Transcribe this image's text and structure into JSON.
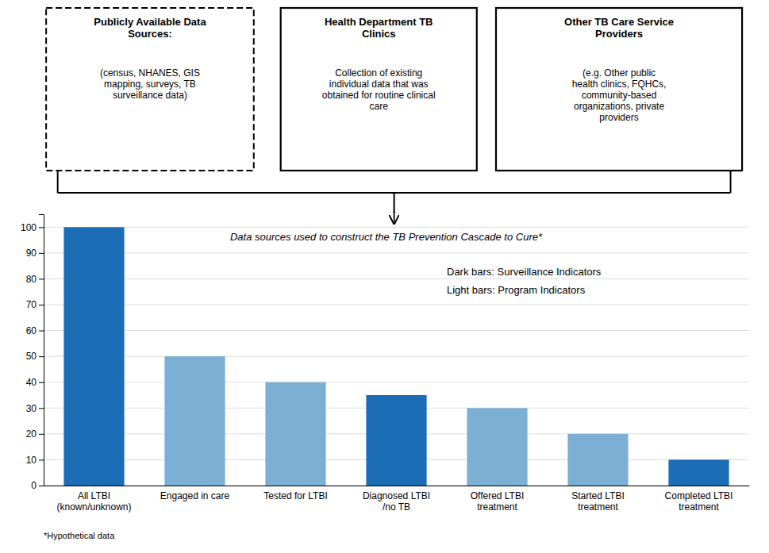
{
  "chart_data": {
    "type": "bar",
    "categories": [
      "All LTBI\n(known/unknown)",
      "Engaged in care",
      "Tested for LTBI",
      "Diagnosed LTBI\n/no TB",
      "Offered LTBI\ntreatment",
      "Started LTBI\ntreatment",
      "Completed LTBI\ntreatment"
    ],
    "values": [
      100,
      50,
      40,
      35,
      30,
      20,
      10
    ],
    "colors": [
      "#1B6DB5",
      "#7BAFD4",
      "#7BAFD4",
      "#1B6DB5",
      "#7BAFD4",
      "#7BAFD4",
      "#1B6DB5"
    ],
    "ylim": [
      0,
      105
    ],
    "yticks": [
      0,
      10,
      20,
      30,
      40,
      50,
      60,
      70,
      80,
      90,
      100
    ],
    "grid": true,
    "annotations": [
      "Data sources used to construct the TB Prevention Cascade to Cure*",
      "Dark bars:  Surveillance Indicators",
      "Light bars:  Program Indicators",
      "*Hypothetical data"
    ],
    "boxes": [
      {
        "title": "Publicly Available Data\nSources:",
        "body": "(census, NHANES, GIS\nmapping, surveys, TB\nsurveillance data)"
      },
      {
        "title": "Health Department TB\nClinics",
        "body": "Collection of existing\nindividual data that was\nobtained for routine clinical\ncare"
      },
      {
        "title": "Other TB Care Service\nProviders",
        "body": "(e.g. Other public\nhealth clinics, FQHCs,\ncommunity-based\norganizations, private\nproviders"
      }
    ]
  }
}
